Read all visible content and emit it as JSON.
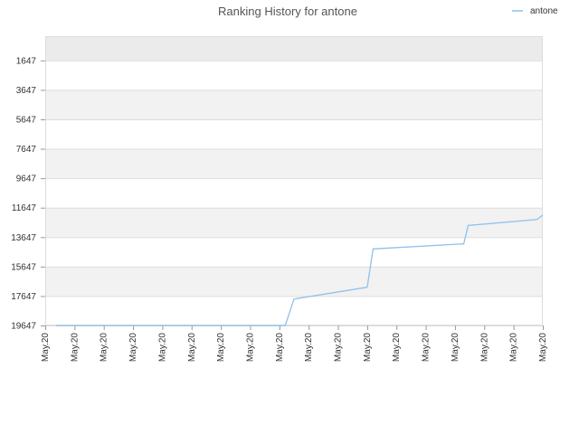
{
  "chart_data": {
    "type": "line",
    "title": "Ranking History for antone",
    "xlabel": "",
    "ylabel": "",
    "legend_position": "top-right",
    "grid": true,
    "y_inverted": true,
    "ylim": [
      -1,
      19647
    ],
    "y_ticks": [
      1647,
      3647,
      5647,
      7647,
      9647,
      11647,
      13647,
      15647,
      17647,
      19647
    ],
    "y_tick_labels": [
      "1647",
      "3647",
      "5647",
      "7647",
      "9647",
      "11647",
      "13647",
      "15647",
      "17647",
      "19647"
    ],
    "x_tick_labels": [
      "May.20",
      "May.20",
      "May.20",
      "May.20",
      "May.20",
      "May.20",
      "May.20",
      "May.20",
      "May.20",
      "May.20",
      "May.20",
      "May.20",
      "May.20",
      "May.20",
      "May.20",
      "May.20",
      "May.20",
      "May.20"
    ],
    "colors": {
      "series": "#8fc1ec",
      "band": "#f2f2f2",
      "top_band": "#ebebeb",
      "grid": "#dddddd"
    },
    "series": [
      {
        "name": "antone",
        "points": [
          [
            0.37,
            19647
          ],
          [
            8.2,
            19647
          ],
          [
            8.5,
            17847
          ],
          [
            11.0,
            17050
          ],
          [
            11.2,
            14447
          ],
          [
            14.3,
            14100
          ],
          [
            14.45,
            12847
          ],
          [
            16.8,
            12450
          ],
          [
            17.0,
            12147
          ]
        ]
      }
    ]
  }
}
